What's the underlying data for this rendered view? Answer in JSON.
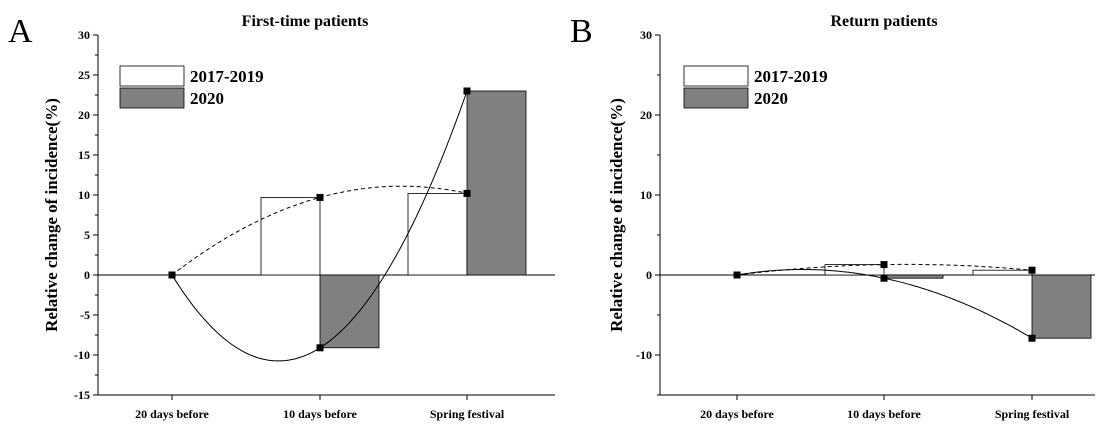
{
  "chart_data": [
    {
      "type": "bar",
      "panel": "A",
      "title": "First-time patients",
      "ylabel": "Relative change of incidence(%)",
      "ylim": [
        -15,
        30
      ],
      "yticks": [
        30,
        25,
        20,
        15,
        10,
        5,
        0,
        -5,
        -10,
        -15
      ],
      "categories": [
        "20 days before",
        "10 days before",
        "Spring festival"
      ],
      "series": [
        {
          "name": "2017-2019",
          "values": [
            0,
            9.7,
            10.2
          ],
          "color": "#ffffff",
          "curve": "dashed"
        },
        {
          "name": "2020",
          "values": [
            0,
            -9.1,
            23.0
          ],
          "color": "#808080",
          "curve": "solid"
        }
      ],
      "legend": "top-left"
    },
    {
      "type": "bar",
      "panel": "B",
      "title": "Return patients",
      "ylabel": "Relative change of incidence(%)",
      "ylim": [
        -15,
        30
      ],
      "yticks": [
        30,
        20,
        10,
        0,
        -10
      ],
      "categories": [
        "20 days before",
        "10 days before",
        "Spring festival"
      ],
      "series": [
        {
          "name": "2017-2019",
          "values": [
            0,
            1.3,
            0.6
          ],
          "color": "#ffffff",
          "curve": "dashed"
        },
        {
          "name": "2020",
          "values": [
            0,
            -0.4,
            -7.9
          ],
          "color": "#808080",
          "curve": "solid"
        }
      ],
      "legend": "top-left"
    }
  ]
}
